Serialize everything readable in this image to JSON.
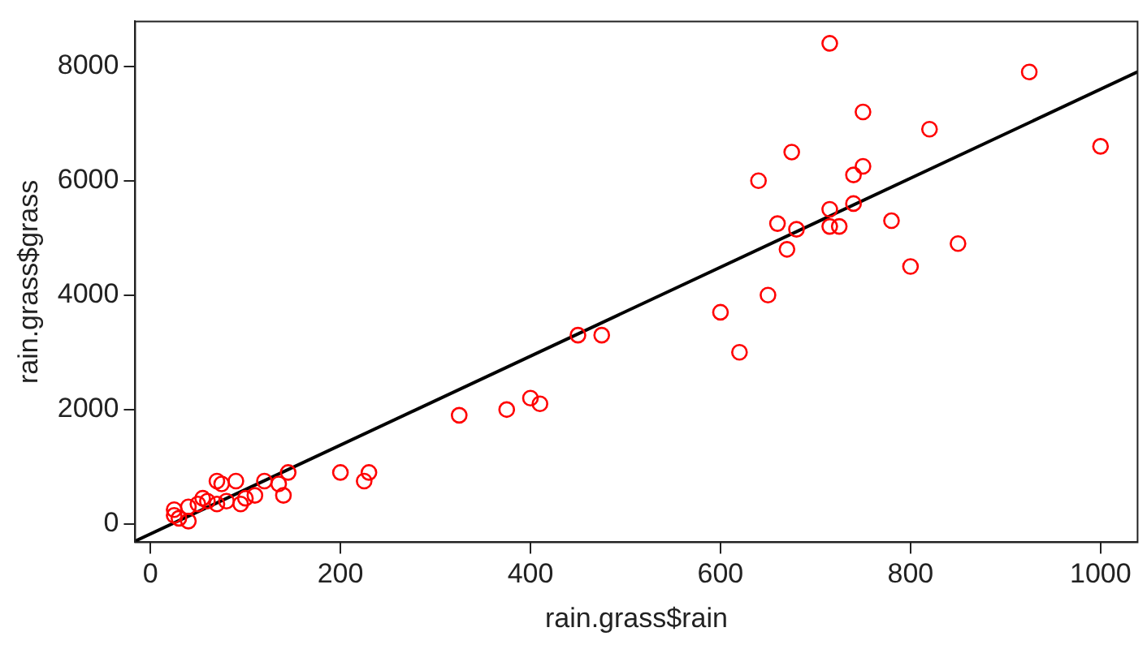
{
  "chart_data": {
    "type": "scatter",
    "xlabel": "rain.grass$rain",
    "ylabel": "rain.grass$grass",
    "xlim": [
      -16,
      1039
    ],
    "ylim": [
      -319,
      8783
    ],
    "xticks": [
      0,
      200,
      400,
      600,
      800,
      1000
    ],
    "yticks": [
      0,
      2000,
      4000,
      6000,
      8000
    ],
    "grid": false,
    "legend": false,
    "marker": "circle",
    "series": [
      {
        "color": "#ff0000",
        "x": [
          715,
          925,
          750,
          820,
          1000,
          675,
          750,
          740,
          640,
          715,
          740,
          780,
          660,
          715,
          725,
          680,
          670,
          850,
          800,
          650,
          600,
          620,
          450,
          475,
          400,
          410,
          375,
          325,
          230,
          200,
          225,
          145,
          140,
          135,
          120,
          110,
          100,
          95,
          90,
          75,
          70,
          80,
          70,
          60,
          55,
          50,
          40,
          40,
          30,
          25,
          25
        ],
        "values": [
          8400,
          7900,
          7200,
          6900,
          6600,
          6500,
          6250,
          6100,
          6000,
          5500,
          5600,
          5300,
          5250,
          5200,
          5200,
          5150,
          4800,
          4900,
          4500,
          4000,
          3700,
          3000,
          3300,
          3300,
          2200,
          2100,
          2000,
          1900,
          900,
          900,
          750,
          900,
          500,
          700,
          750,
          500,
          450,
          350,
          750,
          700,
          750,
          400,
          350,
          400,
          450,
          350,
          300,
          50,
          100,
          250,
          150
        ]
      },
      {
        "type": "line",
        "color": "#000000",
        "marker": "none",
        "x": [
          -16,
          1039
        ],
        "values": [
          -300,
          7900
        ]
      }
    ]
  }
}
